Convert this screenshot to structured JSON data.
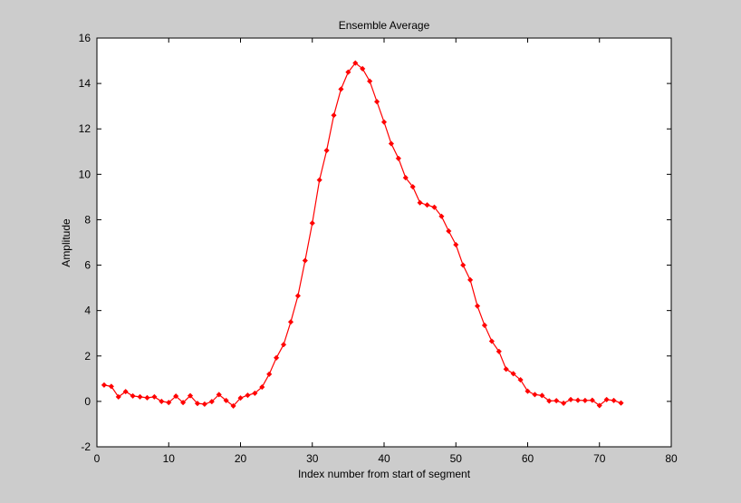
{
  "chart_data": {
    "type": "line",
    "title": "Ensemble Average",
    "xlabel": "Index number from start of segment",
    "ylabel": "Amplitude",
    "xlim": [
      0,
      80
    ],
    "ylim": [
      -2,
      16
    ],
    "xticks": [
      0,
      10,
      20,
      30,
      40,
      50,
      60,
      70,
      80
    ],
    "yticks": [
      -2,
      0,
      2,
      4,
      6,
      8,
      10,
      12,
      14,
      16
    ],
    "grid": false,
    "legend": "none",
    "colors": {
      "figure_bg": "#cccccc",
      "axes_bg": "#ffffff",
      "line": "#ff0000"
    },
    "marker": "diamond",
    "series": [
      {
        "x": [
          1,
          2,
          3,
          4,
          5,
          6,
          7,
          8,
          9,
          10,
          11,
          12,
          13,
          14,
          15,
          16,
          17,
          18,
          19,
          20,
          21,
          22,
          23,
          24,
          25,
          26,
          27,
          28,
          29,
          30,
          31,
          32,
          33,
          34,
          35,
          36,
          37,
          38,
          39,
          40,
          41,
          42,
          43,
          44,
          45,
          46,
          47,
          48,
          49,
          50,
          51,
          52,
          53,
          54,
          55,
          56,
          57,
          58,
          59,
          60,
          61,
          62,
          63,
          64,
          65,
          66,
          67,
          68,
          69,
          70,
          71,
          72,
          73
        ],
        "y": [
          0.72,
          0.66,
          0.2,
          0.43,
          0.24,
          0.2,
          0.16,
          0.2,
          0.0,
          -0.05,
          0.23,
          -0.05,
          0.25,
          -0.09,
          -0.12,
          -0.01,
          0.3,
          0.04,
          -0.2,
          0.15,
          0.27,
          0.36,
          0.63,
          1.2,
          1.92,
          2.5,
          3.5,
          4.65,
          6.2,
          7.85,
          9.75,
          11.05,
          12.6,
          13.75,
          14.5,
          14.9,
          14.65,
          14.1,
          13.2,
          12.3,
          11.35,
          10.7,
          9.85,
          9.45,
          8.75,
          8.65,
          8.55,
          8.15,
          7.5,
          6.9,
          6.0,
          5.35,
          4.2,
          3.35,
          2.65,
          2.2,
          1.42,
          1.22,
          0.95,
          0.45,
          0.3,
          0.26,
          0.02,
          0.03,
          -0.08,
          0.08,
          0.05,
          0.04,
          0.05,
          -0.18,
          0.08,
          0.04,
          -0.07
        ]
      }
    ]
  }
}
